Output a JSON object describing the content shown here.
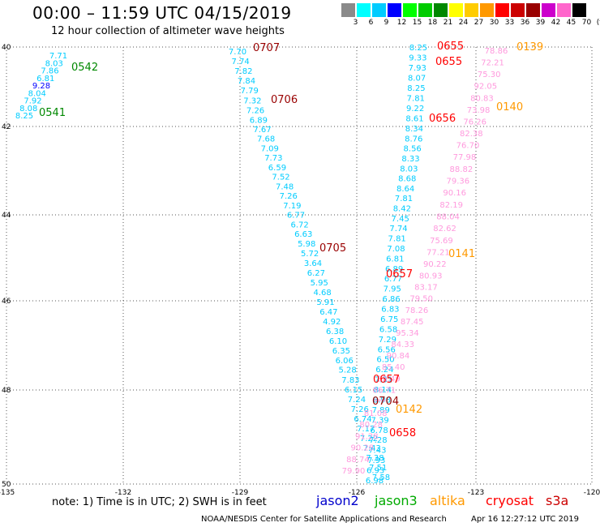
{
  "header": {
    "title": "00:00 – 11:59 UTC 04/15/2019",
    "subtitle": "12 hour collection of altimeter wave heights"
  },
  "color_scale": {
    "labels": [
      "3",
      "6",
      "9",
      "12",
      "15",
      "18",
      "21",
      "24",
      "27",
      "30",
      "33",
      "36",
      "39",
      "42",
      "45",
      "70",
      "(ft)"
    ],
    "colors": [
      "#8a8a8a",
      "#00ffff",
      "#00ccff",
      "#0000ff",
      "#00ff00",
      "#00cc00",
      "#008800",
      "#ffff00",
      "#ffcc00",
      "#ff9900",
      "#ff0000",
      "#cc0000",
      "#990000",
      "#cc00cc",
      "#ff66cc",
      "#000000"
    ]
  },
  "axes": {
    "x_ticks": [
      "-135",
      "-132",
      "-129",
      "-126",
      "-123",
      "-120"
    ],
    "y_ticks": [
      "40",
      "42",
      "44",
      "46",
      "48",
      "50"
    ]
  },
  "legend": {
    "note": "note:  1) Time is in UTC;  2) SWH is in feet",
    "satellites": [
      {
        "name": "jason2",
        "color": "#0000cc"
      },
      {
        "name": "jason3",
        "color": "#00aa00"
      },
      {
        "name": "altika",
        "color": "#ff9900"
      },
      {
        "name": "cryosat",
        "color": "#ff0000"
      },
      {
        "name": "s3a",
        "color": "#cc0000"
      }
    ]
  },
  "footer": {
    "credit": "NOAA/NESDIS Center for Satellite Applications and Research",
    "timestamp": "Apr 16 12:27:12 UTC 2019"
  },
  "tracks": [
    {
      "id": "jason3-west",
      "values": [
        "7.71",
        "8.03",
        "7.86",
        "6.81",
        "9.28",
        "8.04",
        "7.92",
        "8.08",
        "8.25"
      ],
      "colors": [
        "#00ccff",
        "#00ccff",
        "#00ccff",
        "#00ccff",
        "#0000ff",
        "#00ccff",
        "#00ccff",
        "#00ccff",
        "#00ccff"
      ]
    },
    {
      "id": "s3a-middle",
      "values": [
        "7.70",
        "7.74",
        "7.82",
        "7.84",
        "7.79",
        "7.32",
        "7.26",
        "6.89",
        "7.67",
        "7.68",
        "7.09",
        "7.73",
        "6.59",
        "7.52",
        "7.48",
        "7.26",
        "7.19",
        "6.77",
        "6.72",
        "6.63",
        "5.98",
        "5.72",
        "3.64",
        "6.27",
        "5.95",
        "4.68",
        "5.91",
        "6.47",
        "4.92",
        "6.38",
        "6.10",
        "6.35",
        "6.06",
        "5.28",
        "7.83",
        "6.15",
        "7.24",
        "7.26",
        "6.74",
        "7.17",
        "7.22",
        "7.43",
        "7.38",
        "7.51",
        "7.58"
      ]
    },
    {
      "id": "cryosat-east",
      "values": [
        "8.25",
        "9.33",
        "7.93",
        "8.07",
        "8.25",
        "7.81",
        "9.22",
        "8.61",
        "8.34",
        "8.76",
        "8.56",
        "8.33",
        "8.03",
        "8.68",
        "8.64",
        "7.81",
        "8.42",
        "7.45",
        "7.74",
        "7.81",
        "7.08",
        "6.81",
        "6.89",
        "6.77",
        "7.95",
        "6.86",
        "6.83",
        "6.75",
        "6.58",
        "7.29",
        "6.56",
        "6.50",
        "6.24",
        "7.31",
        "8.14",
        "6.98",
        "7.89",
        "7.39",
        "6.78",
        "7.28",
        "7.43",
        "7.93",
        "6.93",
        "6.98"
      ]
    },
    {
      "id": "altika-east",
      "values": [
        "78.86",
        "72.21",
        "75.30",
        "92.05",
        "80.83",
        "73.98",
        "76.26",
        "82.38",
        "76.70",
        "77.98",
        "88.82",
        "79.36",
        "90.16",
        "82.19",
        "88.04",
        "82.62",
        "75.69",
        "77.21",
        "90.22",
        "80.93",
        "83.17",
        "79.50",
        "78.26",
        "87.45",
        "95.34",
        "84.33",
        "90.84",
        "85.40",
        "88.49",
        "86.71",
        "***",
        "81.08",
        "80.28",
        "91.28",
        "90.28",
        "88.74",
        "79.90"
      ]
    }
  ],
  "pass_labels": [
    {
      "text": "0542",
      "color": "#008800"
    },
    {
      "text": "0541",
      "color": "#008800"
    },
    {
      "text": "0707",
      "color": "#990000"
    },
    {
      "text": "0706",
      "color": "#990000"
    },
    {
      "text": "0705",
      "color": "#990000"
    },
    {
      "text": "0704",
      "color": "#990000"
    },
    {
      "text": "0655",
      "color": "#ff0000"
    },
    {
      "text": "0655",
      "color": "#ff0000"
    },
    {
      "text": "0656",
      "color": "#ff0000"
    },
    {
      "text": "0657",
      "color": "#ff0000"
    },
    {
      "text": "0657",
      "color": "#ff0000"
    },
    {
      "text": "0658",
      "color": "#ff0000"
    },
    {
      "text": "0139",
      "color": "#ff9900"
    },
    {
      "text": "0140",
      "color": "#ff9900"
    },
    {
      "text": "0141",
      "color": "#ff9900"
    },
    {
      "text": "0142",
      "color": "#ff9900"
    }
  ]
}
